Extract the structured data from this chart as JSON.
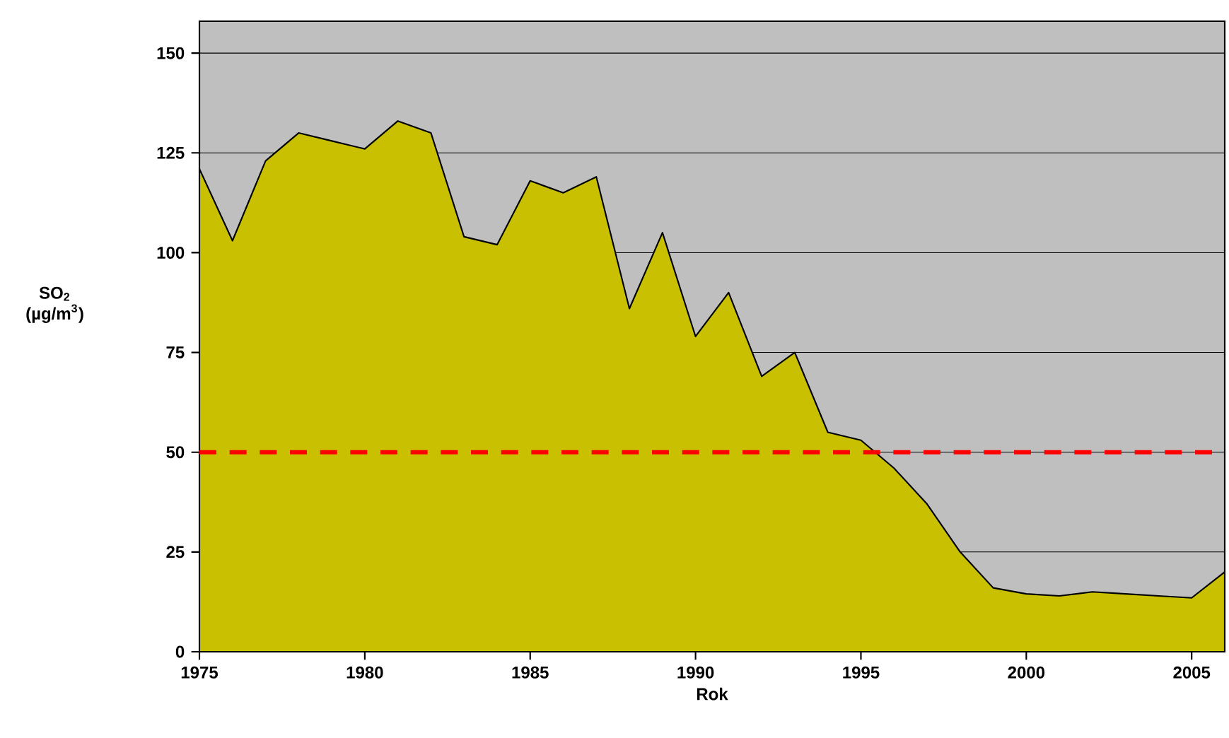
{
  "chart_data": {
    "type": "area",
    "xlabel": "Rok",
    "ylabel": "SO$_{2}$ (µg/m$^{3}$)",
    "x": [
      1975,
      1976,
      1977,
      1978,
      1979,
      1980,
      1981,
      1982,
      1983,
      1984,
      1985,
      1986,
      1987,
      1988,
      1989,
      1990,
      1991,
      1992,
      1993,
      1994,
      1995,
      1996,
      1997,
      1998,
      1999,
      2000,
      2001,
      2002,
      2003,
      2004,
      2005,
      2006
    ],
    "values": [
      121,
      103,
      123,
      130,
      128,
      126,
      133,
      130,
      104,
      102,
      118,
      115,
      119,
      86,
      105,
      79,
      90,
      69,
      75,
      55,
      53,
      46,
      37,
      25,
      16,
      14.5,
      14,
      15,
      14.5,
      14,
      13.5,
      20
    ],
    "color": "#c8c000",
    "xlim": [
      1975,
      2006
    ],
    "xticks": [
      1975,
      1980,
      1985,
      1990,
      1995,
      2000,
      2005
    ],
    "ylim": [
      0,
      158
    ],
    "yticks": [
      0,
      25,
      50,
      75,
      100,
      125,
      150
    ],
    "grid": "y",
    "ref_lines": [
      {
        "axis": "y",
        "value": 50,
        "color": "#ff0000",
        "line_style": "dashed"
      }
    ]
  }
}
